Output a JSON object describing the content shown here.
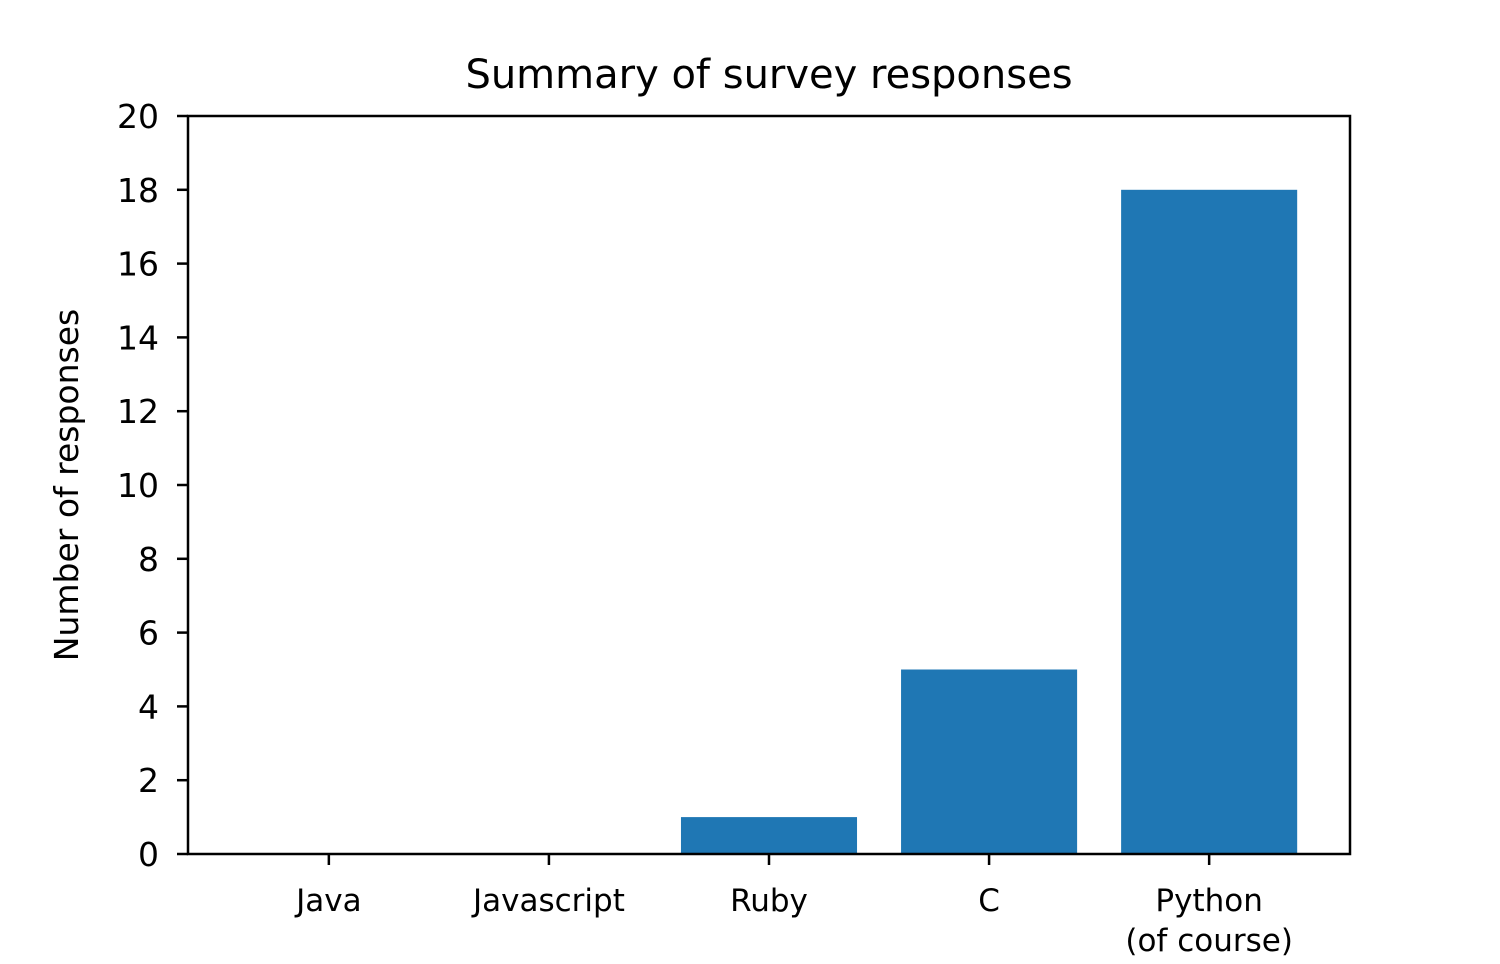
{
  "chart_data": {
    "type": "bar",
    "title": "Summary of survey responses",
    "xlabel": "",
    "ylabel": "Number of responses",
    "categories": [
      [
        "Java"
      ],
      [
        "Javascript"
      ],
      [
        "Ruby"
      ],
      [
        "C"
      ],
      [
        "Python",
        "(of course)"
      ]
    ],
    "values": [
      0,
      0,
      1,
      5,
      18
    ],
    "ylim": [
      0,
      20
    ],
    "yticks": [
      "0",
      "2",
      "4",
      "6",
      "8",
      "10",
      "12",
      "14",
      "16",
      "18",
      "20"
    ],
    "ytick_values": [
      0,
      2,
      4,
      6,
      8,
      10,
      12,
      14,
      16,
      18,
      20
    ],
    "bar_color": "#1f77b4",
    "grid": false,
    "legend": "none"
  }
}
